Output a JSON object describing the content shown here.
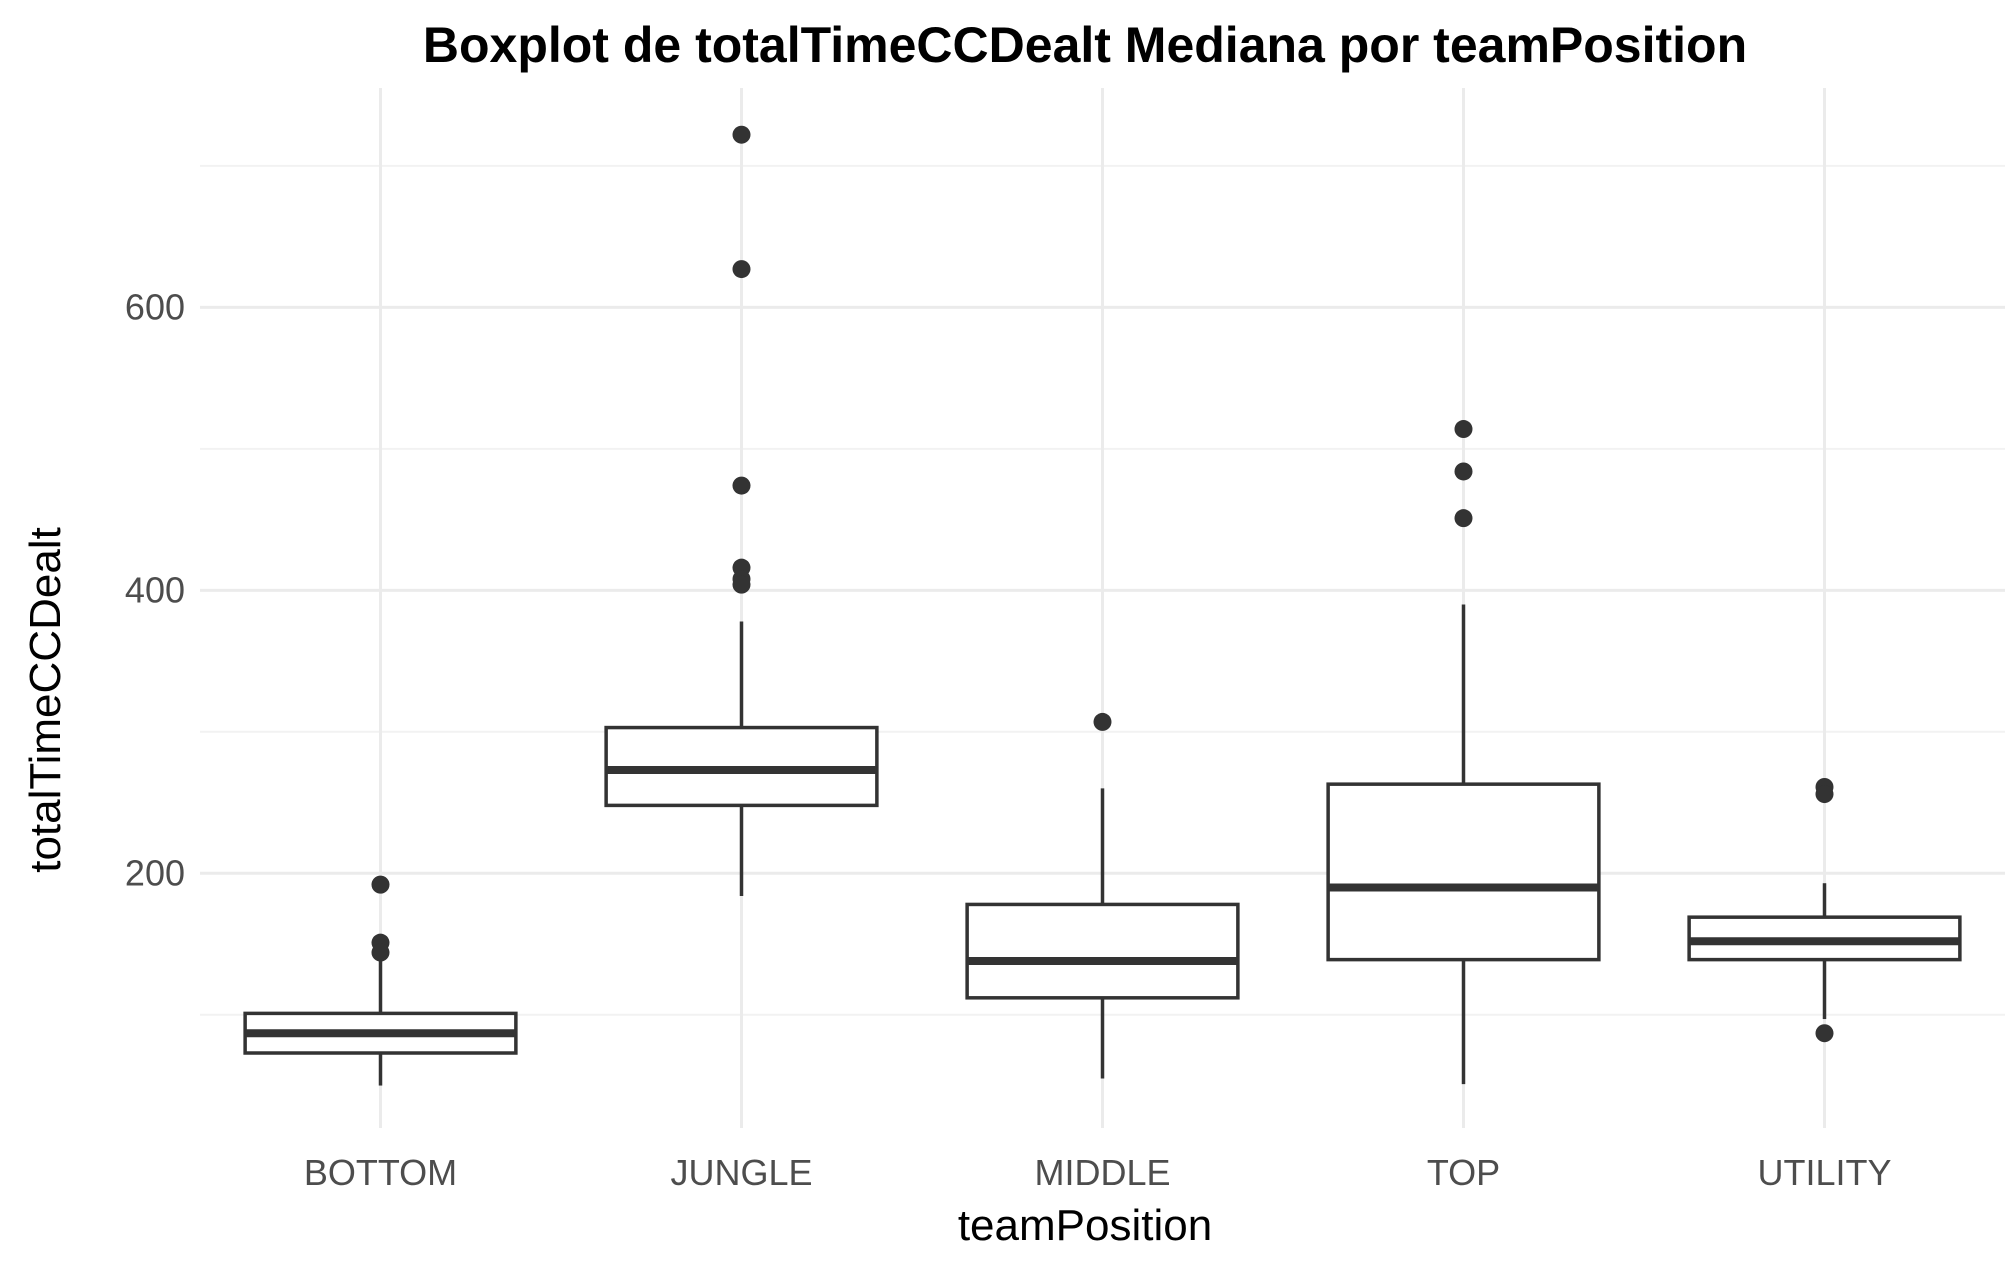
{
  "chart_data": {
    "type": "boxplot",
    "title": "Boxplot de totalTimeCCDealt Mediana por teamPosition",
    "xlabel": "teamPosition",
    "ylabel": "totalTimeCCDealt",
    "ylim": [
      20,
      755
    ],
    "yticks": [
      200,
      400,
      600
    ],
    "grid": true,
    "categories": [
      "BOTTOM",
      "JUNGLE",
      "MIDDLE",
      "TOP",
      "UTILITY"
    ],
    "boxes": [
      {
        "category": "BOTTOM",
        "min": 50,
        "q1": 73,
        "median": 87,
        "q3": 101,
        "max": 140,
        "outliers": [
          192,
          151,
          144
        ]
      },
      {
        "category": "JUNGLE",
        "min": 184,
        "q1": 248,
        "median": 273,
        "q3": 303,
        "max": 378,
        "outliers": [
          722,
          627,
          474,
          416,
          408,
          404
        ]
      },
      {
        "category": "MIDDLE",
        "min": 55,
        "q1": 112,
        "median": 138,
        "q3": 178,
        "max": 260,
        "outliers": [
          307
        ]
      },
      {
        "category": "TOP",
        "min": 51,
        "q1": 139,
        "median": 190,
        "q3": 263,
        "max": 390,
        "outliers": [
          514,
          484,
          451
        ]
      },
      {
        "category": "UTILITY",
        "min": 97,
        "q1": 139,
        "median": 152,
        "q3": 169,
        "max": 193,
        "outliers": [
          261,
          256,
          87
        ]
      }
    ]
  }
}
